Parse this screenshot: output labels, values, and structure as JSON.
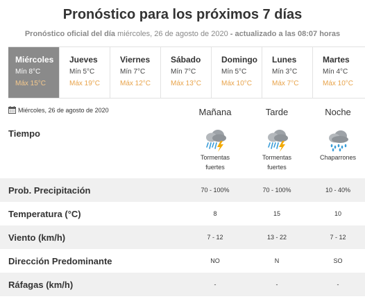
{
  "header": {
    "title": "Pronóstico para los próximos 7 días",
    "subtitle_prefix": "Pronóstico oficial del día",
    "subtitle_date": "miércoles, 26 de agosto de 2020",
    "subtitle_mid": "- actualizado a las",
    "subtitle_time": "08:07",
    "subtitle_suffix": "horas"
  },
  "days": [
    {
      "name": "Miércoles",
      "min": "Mín 8°C",
      "max": "Máx 15°C"
    },
    {
      "name": "Jueves",
      "min": "Mín 5°C",
      "max": "Máx 19°C"
    },
    {
      "name": "Viernes",
      "min": "Mín 7°C",
      "max": "Máx 12°C"
    },
    {
      "name": "Sábado",
      "min": "Mín 7°C",
      "max": "Máx 13°C"
    },
    {
      "name": "Domingo",
      "min": "Mín 5°C",
      "max": "Máx 10°C"
    },
    {
      "name": "Lunes",
      "min": "Mín 3°C",
      "max": "Máx 7°C"
    },
    {
      "name": "Martes",
      "min": "Mín 4°C",
      "max": "Máx 10°C"
    }
  ],
  "detail": {
    "date": "Miércoles, 26 de agosto de 2020",
    "periods": [
      "Mañana",
      "Tarde",
      "Noche"
    ],
    "tiempo_label": "Tiempo",
    "conditions": [
      {
        "icon": "storm-cloud-icon",
        "text1": "Tormentas",
        "text2": "fuertes"
      },
      {
        "icon": "storm-cloud-icon",
        "text1": "Tormentas",
        "text2": "fuertes"
      },
      {
        "icon": "rain-showers-icon",
        "text1": "Chaparrones",
        "text2": ""
      }
    ],
    "rows": [
      {
        "label": "Prob. Precipitación",
        "values": [
          "70 - 100%",
          "70 - 100%",
          "10 - 40%"
        ]
      },
      {
        "label": "Temperatura (°C)",
        "values": [
          "8",
          "15",
          "10"
        ]
      },
      {
        "label": "Viento (km/h)",
        "values": [
          "7 - 12",
          "13 - 22",
          "7 - 12"
        ]
      },
      {
        "label": "Dirección Predominante",
        "values": [
          "NO",
          "N",
          "SO"
        ]
      },
      {
        "label": "Ráfagas (km/h)",
        "values": [
          "-",
          "-",
          "-"
        ]
      }
    ]
  },
  "colors": {
    "active_day_bg": "#8a8a8a",
    "max_temp": "#e8a34a",
    "shaded_row": "#f0f0f0",
    "rain": "#3a9dd8",
    "lightning": "#f2a900"
  }
}
